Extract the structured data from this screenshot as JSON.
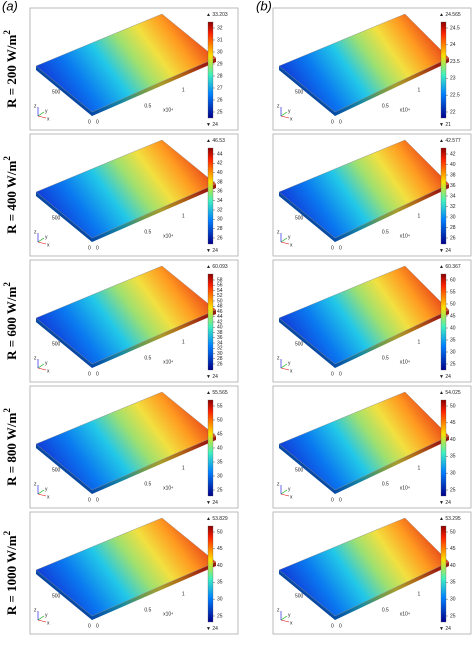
{
  "column_labels": [
    "(a)",
    "(b)"
  ],
  "row_labels": [
    {
      "text": "R = 200 W/m",
      "sup": "2"
    },
    {
      "text": "R = 400 W/m",
      "sup": "2"
    },
    {
      "text": "R = 600 W/m",
      "sup": "2"
    },
    {
      "text": "R = 800 W/m",
      "sup": "2"
    },
    {
      "text": "R = 1000 W/m",
      "sup": "2"
    }
  ],
  "plate_axis_labels": [
    "500",
    "0",
    "0",
    "0.5",
    "1",
    "x10⁴"
  ],
  "axis_triad": [
    "x",
    "y",
    "z"
  ],
  "panels": [
    [
      {
        "max": "33.203",
        "ticks": [
          "32",
          "31",
          "30",
          "29",
          "28",
          "27",
          "26",
          "25"
        ],
        "min": "24"
      },
      {
        "max": "24.565",
        "ticks": [
          "24.5",
          "24",
          "23.5",
          "23",
          "22.5",
          "22"
        ],
        "min": "21"
      }
    ],
    [
      {
        "max": "46.53",
        "ticks": [
          "44",
          "42",
          "40",
          "38",
          "36",
          "34",
          "32",
          "30",
          "28",
          "26"
        ],
        "min": "24"
      },
      {
        "max": "42.577",
        "ticks": [
          "42",
          "40",
          "38",
          "36",
          "34",
          "32",
          "30",
          "28",
          "26"
        ],
        "min": "24"
      }
    ],
    [
      {
        "max": "60.093",
        "ticks": [
          "58",
          "56",
          "54",
          "52",
          "50",
          "48",
          "46",
          "44",
          "42",
          "40",
          "38",
          "36",
          "34",
          "32",
          "30",
          "28",
          "26"
        ],
        "min": "24"
      },
      {
        "max": "60.367",
        "ticks": [
          "60",
          "55",
          "50",
          "45",
          "40",
          "35",
          "30",
          "25"
        ],
        "min": "24"
      }
    ],
    [
      {
        "max": "55.565",
        "ticks": [
          "55",
          "50",
          "45",
          "40",
          "35",
          "30",
          "25"
        ],
        "min": "24"
      },
      {
        "max": "54.025",
        "ticks": [
          "50",
          "45",
          "40",
          "35",
          "30",
          "25"
        ],
        "min": "24"
      }
    ],
    [
      {
        "max": "53.829",
        "ticks": [
          "50",
          "45",
          "40",
          "35",
          "30",
          "25"
        ],
        "min": "24"
      },
      {
        "max": "53.295",
        "ticks": [
          "50",
          "45",
          "40",
          "35",
          "30",
          "25"
        ],
        "min": "24"
      }
    ]
  ]
}
